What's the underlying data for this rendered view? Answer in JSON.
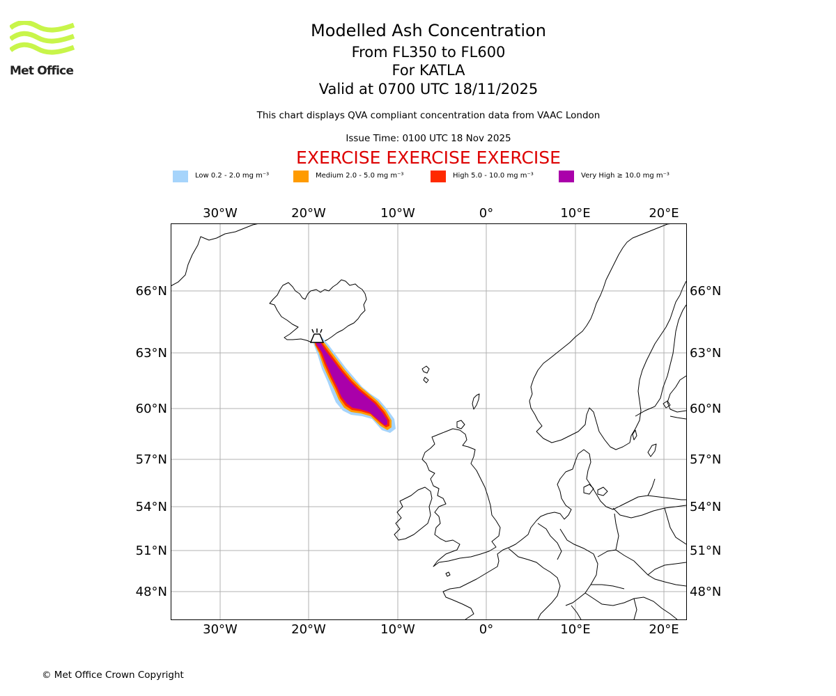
{
  "header": {
    "logo_text": "Met Office",
    "title": "Modelled Ash Concentration",
    "level_range": "From FL350 to FL600",
    "volcano": "For KATLA",
    "valid_time": "Valid at 0700 UTC 18/11/2025",
    "description": "This chart displays QVA compliant concentration data from VAAC London",
    "issue_time": "Issue Time: 0100 UTC 18 Nov 2025",
    "exercise_banner": "EXERCISE EXERCISE EXERCISE"
  },
  "legend": [
    {
      "label": "Low 0.2 - 2.0 mg m⁻³",
      "color": "#a6d4fb"
    },
    {
      "label": "Medium 2.0 - 5.0 mg m⁻³",
      "color": "#ff9b00"
    },
    {
      "label": "High 5.0 - 10.0 mg m⁻³",
      "color": "#ff2a00"
    },
    {
      "label": "Very High ≥ 10.0 mg m⁻³",
      "color": "#aa00aa"
    }
  ],
  "map": {
    "lon_labels": [
      "30°W",
      "20°W",
      "10°W",
      "0°",
      "10°E",
      "20°E"
    ],
    "lat_labels": [
      "66°N",
      "63°N",
      "60°N",
      "57°N",
      "54°N",
      "51°N",
      "48°N"
    ],
    "volcano_icon": "volcano-icon",
    "volcano_color": "#000000"
  },
  "footer": {
    "copyright": "© Met Office Crown Copyright"
  }
}
